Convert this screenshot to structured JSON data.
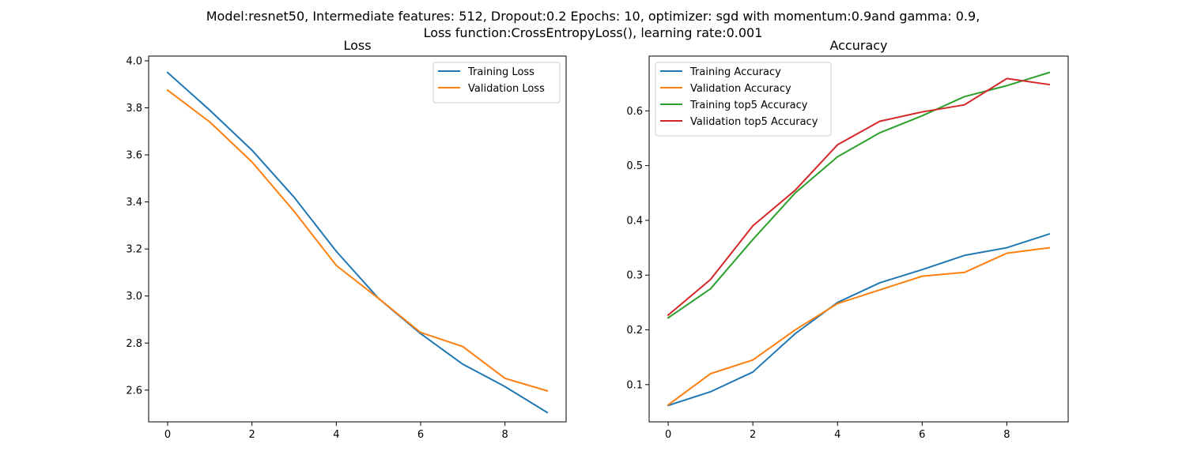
{
  "figure": {
    "suptitle_line1": "Model:resnet50, Intermediate features: 512, Dropout:0.2 Epochs: 10, optimizer: sgd with momentum:0.9and gamma: 0.9,",
    "suptitle_line2": "Loss function:CrossEntropyLoss(), learning rate:0.001"
  },
  "chart_data": [
    {
      "type": "line",
      "title": "Loss",
      "xlabel": "",
      "ylabel": "",
      "x": [
        0,
        1,
        2,
        3,
        4,
        5,
        6,
        7,
        8,
        9
      ],
      "xlim": [
        -0.45,
        9.45
      ],
      "ylim": [
        2.465,
        4.02
      ],
      "xticks": [
        0,
        2,
        4,
        6,
        8
      ],
      "yticks": [
        2.6,
        2.8,
        3.0,
        3.2,
        3.4,
        3.6,
        3.8,
        4.0
      ],
      "ytick_labels": [
        "2.6",
        "2.8",
        "3.0",
        "3.2",
        "3.4",
        "3.6",
        "3.8",
        "4.0"
      ],
      "grid": false,
      "legend_position": "top-right",
      "series": [
        {
          "name": "Training Loss",
          "color": "#1f77b4",
          "values": [
            3.95,
            3.79,
            3.62,
            3.42,
            3.19,
            2.99,
            2.84,
            2.71,
            2.615,
            2.505
          ]
        },
        {
          "name": "Validation Loss",
          "color": "#ff7f0e",
          "values": [
            3.875,
            3.74,
            3.57,
            3.36,
            3.13,
            2.99,
            2.845,
            2.785,
            2.65,
            2.597
          ]
        }
      ]
    },
    {
      "type": "line",
      "title": "Accuracy",
      "xlabel": "",
      "ylabel": "",
      "x": [
        0,
        1,
        2,
        3,
        4,
        5,
        6,
        7,
        8,
        9
      ],
      "xlim": [
        -0.45,
        9.45
      ],
      "ylim": [
        0.032,
        0.7
      ],
      "xticks": [
        0,
        2,
        4,
        6,
        8
      ],
      "yticks": [
        0.1,
        0.2,
        0.3,
        0.4,
        0.5,
        0.6
      ],
      "ytick_labels": [
        "0.1",
        "0.2",
        "0.3",
        "0.4",
        "0.5",
        "0.6"
      ],
      "grid": false,
      "legend_position": "top-left",
      "series": [
        {
          "name": "Training Accuracy",
          "color": "#1f77b4",
          "values": [
            0.062,
            0.087,
            0.123,
            0.193,
            0.25,
            0.286,
            0.31,
            0.336,
            0.35,
            0.375
          ]
        },
        {
          "name": "Validation Accuracy",
          "color": "#ff7f0e",
          "values": [
            0.063,
            0.12,
            0.145,
            0.2,
            0.248,
            0.273,
            0.298,
            0.305,
            0.34,
            0.35
          ]
        },
        {
          "name": "Training top5 Accuracy",
          "color": "#2ca02c",
          "values": [
            0.222,
            0.275,
            0.365,
            0.45,
            0.516,
            0.56,
            0.591,
            0.626,
            0.646,
            0.67
          ]
        },
        {
          "name": "Validation top5 Accuracy",
          "color": "#d62728",
          "values": [
            0.227,
            0.292,
            0.39,
            0.455,
            0.538,
            0.581,
            0.598,
            0.611,
            0.659,
            0.648
          ]
        }
      ]
    }
  ]
}
